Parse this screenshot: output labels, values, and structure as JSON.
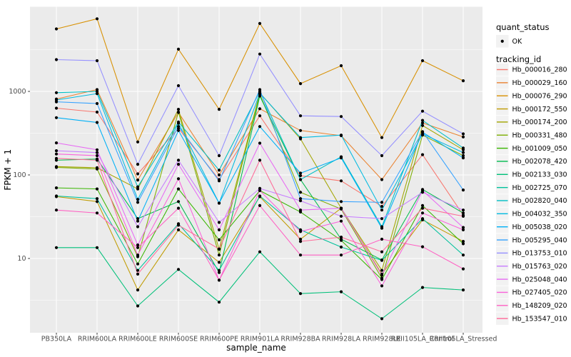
{
  "chart": {
    "x_axis_title": "sample_name",
    "y_axis_title": "FPKM + 1",
    "legend": {
      "quant_status_title": "quant_status",
      "quant_status_items": [
        {
          "label": "OK",
          "shape": "black-point"
        }
      ],
      "tracking_id_title": "tracking_id"
    },
    "style": {
      "panel_bg": "#EBEBEB",
      "grid_color": "#FFFFFF",
      "tick_color": "#333333",
      "tick_label_color": "#4D4D4D",
      "title_color": "#000000",
      "legend_key_bg": "#F2F2F2",
      "point_color": "#000000"
    }
  },
  "chart_data": {
    "type": "line",
    "y_scale": "log10",
    "ylim": [
      1.3,
      10000
    ],
    "y_ticks": [
      10,
      100,
      1000
    ],
    "y_minor_breaks": [
      3.1623,
      31.623,
      316.23,
      3162.3
    ],
    "grid": true,
    "legend_position": "right",
    "x": [
      "PB350LA",
      "RRIM600LA",
      "RRIM600LE",
      "RRIM600SE",
      "RRIM600PE",
      "RRIM901LA",
      "RRIM928BA",
      "RRIM928LA",
      "RRIM928LE",
      "RRII105LA_Control",
      "RRII105LA_Stressed"
    ],
    "series": [
      {
        "name": "Hb_000016_280",
        "color": "#F8766D",
        "values": [
          630,
          565,
          103,
          360,
          88,
          510,
          98,
          85,
          42,
          175,
          33
        ]
      },
      {
        "name": "Hb_000029_160",
        "color": "#EA8331",
        "values": [
          810,
          1050,
          87,
          560,
          100,
          620,
          340,
          295,
          88,
          420,
          285
        ]
      },
      {
        "name": "Hb_000076_290",
        "color": "#D89000",
        "values": [
          5600,
          7400,
          248,
          3200,
          610,
          6500,
          1240,
          2030,
          280,
          2330,
          1340
        ]
      },
      {
        "name": "Hb_000172_550",
        "color": "#C09B00",
        "values": [
          55,
          48,
          4.2,
          22,
          9,
          55,
          17,
          40,
          6.5,
          29,
          16
        ]
      },
      {
        "name": "Hb_000174_200",
        "color": "#A3A500",
        "values": [
          126,
          122,
          68,
          610,
          12.9,
          960,
          270,
          40,
          7.2,
          390,
          200
        ]
      },
      {
        "name": "Hb_000331_480",
        "color": "#7CAE00",
        "values": [
          123,
          118,
          10.5,
          565,
          11,
          930,
          62,
          39,
          5.8,
          300,
          170
        ]
      },
      {
        "name": "Hb_001009_050",
        "color": "#39B600",
        "values": [
          70,
          68,
          8.6,
          68,
          16.7,
          65,
          36,
          16.5,
          5.6,
          43,
          15
        ]
      },
      {
        "name": "Hb_002078_420",
        "color": "#00BB4E",
        "values": [
          150,
          155,
          30,
          48,
          6.8,
          880,
          88,
          17,
          9.6,
          67,
          35
        ]
      },
      {
        "name": "Hb_002133_030",
        "color": "#00C079",
        "values": [
          13.5,
          13.5,
          2.7,
          7.4,
          3,
          12,
          3.8,
          4,
          1.9,
          4.5,
          4.2
        ]
      },
      {
        "name": "Hb_002725_070",
        "color": "#00C19C",
        "values": [
          56,
          52,
          7.2,
          26,
          7.2,
          56,
          22,
          13.7,
          9.5,
          30,
          11
        ]
      },
      {
        "name": "Hb_002820_040",
        "color": "#00BFC4",
        "values": [
          965,
          1000,
          72,
          430,
          114,
          1000,
          88,
          165,
          24,
          450,
          210
        ]
      },
      {
        "name": "Hb_004032_350",
        "color": "#00BAE0",
        "values": [
          790,
          940,
          51,
          415,
          46,
          950,
          280,
          300,
          38,
          310,
          185
        ]
      },
      {
        "name": "Hb_005038_020",
        "color": "#00B0F6",
        "values": [
          485,
          425,
          28,
          340,
          46,
          380,
          105,
          160,
          23,
          325,
          160
        ]
      },
      {
        "name": "Hb_005295_040",
        "color": "#35A2FF",
        "values": [
          750,
          715,
          47,
          380,
          85,
          1050,
          52,
          48,
          47,
          330,
          66
        ]
      },
      {
        "name": "Hb_013753_010",
        "color": "#9590FF",
        "values": [
          2400,
          2330,
          134,
          1170,
          170,
          2800,
          510,
          500,
          170,
          580,
          310
        ]
      },
      {
        "name": "Hb_015763_020",
        "color": "#C77CFF",
        "values": [
          195,
          185,
          24,
          150,
          27,
          69,
          49,
          32,
          30,
          62,
          38
        ]
      },
      {
        "name": "Hb_025048_040",
        "color": "#E76BF3",
        "values": [
          242,
          200,
          14.5,
          134,
          22,
          240,
          38,
          40,
          6.3,
          65,
          23.5
        ]
      },
      {
        "name": "Hb_027405_020",
        "color": "#FA62DB",
        "values": [
          178,
          170,
          11,
          90,
          5.5,
          65,
          21,
          28,
          4.7,
          35,
          22
        ]
      },
      {
        "name": "Hb_148209_020",
        "color": "#FF61C3",
        "values": [
          38,
          35,
          13.5,
          40,
          5.5,
          43,
          11,
          11,
          17,
          13.8,
          7.5
        ]
      },
      {
        "name": "Hb_153547_010",
        "color": "#FF6A98",
        "values": [
          158,
          150,
          6.5,
          25,
          13,
          150,
          16,
          18,
          12,
          40,
          32
        ]
      }
    ]
  }
}
